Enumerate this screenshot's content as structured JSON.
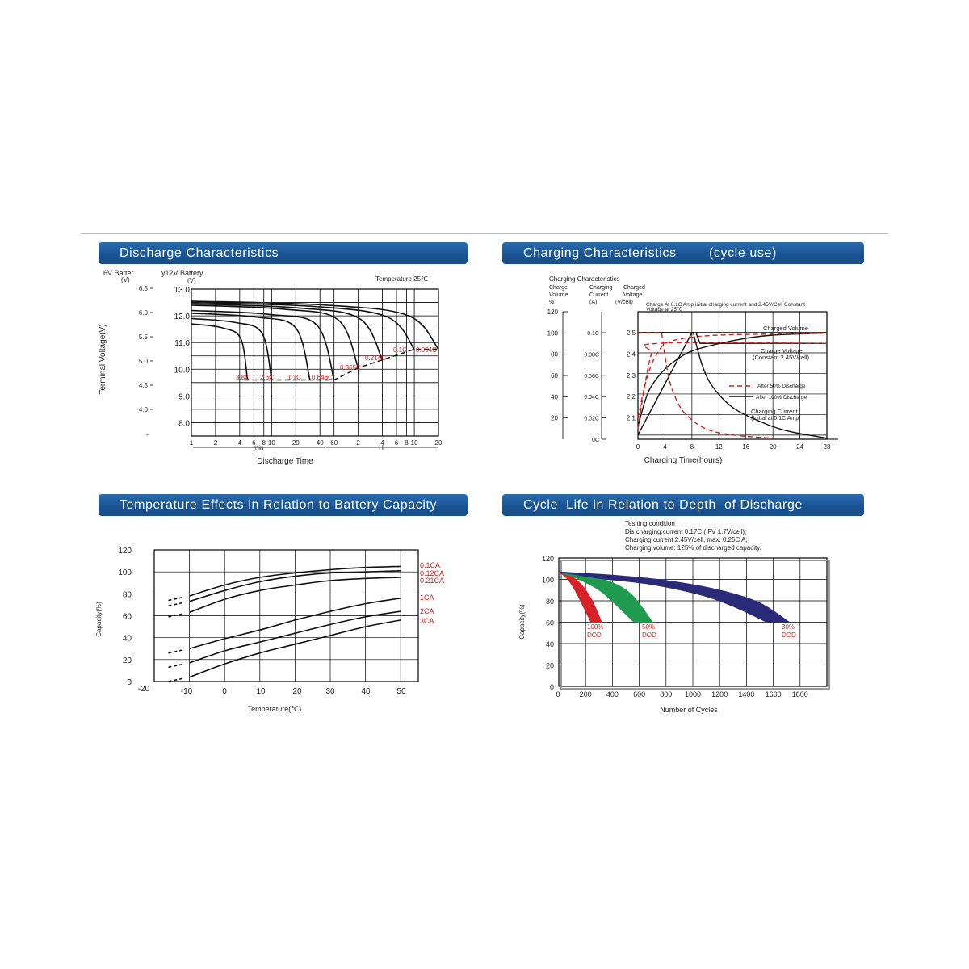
{
  "colors": {
    "header_bg": "#1a5494",
    "grid": "#000000",
    "label_red": "#c8241c",
    "curve": "#111111",
    "dod100": "#d8222a",
    "dod50": "#1f9a4e",
    "dod30": "#2a2a78"
  },
  "headers": {
    "discharge": "Discharge Characteristics",
    "charging": "Charging Characteristics        (cycle use)",
    "temperature": "Temperature Effects in Relation to Battery Capacity",
    "cycle": "Cycle  Life in Relation to Depth  of Discharge"
  },
  "chart_data": [
    {
      "id": "discharge",
      "type": "line",
      "title": "Discharge Characteristics",
      "ylabel": "Terminal Voltage(V)",
      "xlabel": "Discharge Time",
      "axis6_title": "6V Batter",
      "axis6_unit": "(V)",
      "axis12_title": "y12V Battery",
      "axis12_unit": "(V)",
      "note": "Temperature 25℃",
      "y6_ticks": [
        "6.5",
        "6.0",
        "5.5",
        "5.0",
        "4.5",
        "4.0"
      ],
      "y12_ticks": [
        "13.0",
        "12.0",
        "11.0",
        "10.0",
        "9.0",
        "8.0"
      ],
      "ylim": [
        7.5,
        13.0
      ],
      "x_ticks": [
        "1",
        "2",
        "4",
        "6",
        "8",
        "10",
        "20",
        "40",
        "60",
        "2",
        "4",
        "6",
        "8",
        "10",
        "20"
      ],
      "x_units": [
        "min",
        "H"
      ],
      "series": [
        {
          "name": "3.8C",
          "end_time_min": 5,
          "start_v": 11.7,
          "end_v": 9.6
        },
        {
          "name": "2.6C",
          "end_time_min": 10,
          "start_v": 11.9,
          "end_v": 9.6
        },
        {
          "name": "1.1C",
          "end_time_min": 30,
          "start_v": 12.1,
          "end_v": 9.6
        },
        {
          "name": "0.646C",
          "end_time_min": 60,
          "start_v": 12.2,
          "end_v": 9.6
        },
        {
          "name": "0.365C",
          "end_time_min": 120,
          "start_v": 12.4,
          "end_v": 10.05
        },
        {
          "name": "0.214C",
          "end_time_min": 240,
          "start_v": 12.45,
          "end_v": 10.35
        },
        {
          "name": "0.1C",
          "end_time_min": 600,
          "start_v": 12.5,
          "end_v": 10.75
        },
        {
          "name": "0.054C",
          "end_time_min": 1200,
          "start_v": 12.55,
          "end_v": 10.75
        }
      ]
    },
    {
      "id": "charging",
      "type": "line",
      "title": "Charging Characteristics (cycle use)",
      "xlabel": "Charging Time(hours)",
      "col_title": "Charging Characteristics",
      "col1": [
        "Charge",
        "Volume",
        "%"
      ],
      "col2": [
        "Charging",
        "Current",
        "(A)"
      ],
      "col3": [
        "Charged",
        "Voltage",
        "(V/cell)"
      ],
      "note1": "Charge At 0.1C Amp initial charging current and 2.45V/Cell Constant",
      "note2": "Voltage  at 25℃",
      "volume_ticks": [
        "120",
        "100",
        "80",
        "60",
        "40",
        "20"
      ],
      "current_ticks": [
        "0.1C",
        "0.08C",
        "0.06C",
        "0.04C",
        "0.02C",
        "0C"
      ],
      "voltage_ticks": [
        "2.5",
        "2.4",
        "2.3",
        "2.2",
        "2.1"
      ],
      "x": [
        0,
        4,
        8,
        12,
        16,
        20,
        24,
        28
      ],
      "xlim": [
        0,
        28
      ],
      "legend": {
        "dashed": "After 50% Discharge",
        "solid": "After 100% Discharge"
      },
      "labels": {
        "volume": "Charged Volume",
        "voltage1": "Charge Voltage",
        "voltage2": "(Constant 2.45V/cell)",
        "current1": "Charging Current",
        "current2": "(Initial at 0.1C Amp)"
      },
      "series": [
        {
          "name": "Charged Volume (100%)",
          "points": [
            [
              0,
              0.12
            ],
            [
              1,
              0.35
            ],
            [
              2,
              0.5
            ],
            [
              4,
              0.66
            ],
            [
              6,
              0.76
            ],
            [
              8,
              0.83
            ],
            [
              12,
              0.9
            ],
            [
              16,
              0.95
            ],
            [
              20,
              0.98
            ],
            [
              28,
              1.0
            ]
          ]
        },
        {
          "name": "Charged Volume (50%)",
          "points": [
            [
              0,
              0.2
            ],
            [
              1,
              0.5
            ],
            [
              2,
              0.7
            ],
            [
              3,
              0.82
            ],
            [
              4,
              0.9
            ],
            [
              6,
              0.94
            ],
            [
              8,
              0.96
            ],
            [
              12,
              0.98
            ],
            [
              20,
              0.99
            ],
            [
              28,
              1.0
            ]
          ]
        },
        {
          "name": "Charge Voltage (100%)",
          "points": [
            [
              0,
              2.02
            ],
            [
              8,
              2.5
            ],
            [
              8.6,
              2.5
            ],
            [
              9.2,
              2.45
            ],
            [
              28,
              2.45
            ]
          ]
        },
        {
          "name": "Charge Voltage (50%)",
          "points": [
            [
              0,
              2.05
            ],
            [
              1,
              2.25
            ],
            [
              2,
              2.4
            ],
            [
              3,
              2.45
            ],
            [
              28,
              2.45
            ]
          ]
        },
        {
          "name": "Charging Current (100%)",
          "points": [
            [
              0,
              0.1
            ],
            [
              8.2,
              0.1
            ],
            [
              9.5,
              0.07
            ],
            [
              11,
              0.05
            ],
            [
              14,
              0.03
            ],
            [
              18,
              0.017
            ],
            [
              22,
              0.008
            ],
            [
              28,
              0.001
            ]
          ]
        },
        {
          "name": "Charging Current (50%)",
          "points": [
            [
              0,
              0.1
            ],
            [
              3.5,
              0.1
            ],
            [
              4.5,
              0.06
            ],
            [
              5.5,
              0.04
            ],
            [
              7,
              0.024
            ],
            [
              10,
              0.01
            ],
            [
              14,
              0.004
            ],
            [
              20,
              0.001
            ]
          ]
        }
      ]
    },
    {
      "id": "temperature",
      "type": "line",
      "title": "Temperature Effects in Relation to Battery Capacity",
      "xlabel": "Temperature(℃)",
      "ylabel": "Capacity(%)",
      "x_ticks": [
        "-20",
        "-10",
        "0",
        "10",
        "20",
        "30",
        "40",
        "50"
      ],
      "y_ticks": [
        "120",
        "100",
        "80",
        "60",
        "40",
        "20",
        "0"
      ],
      "xlim": [
        -20,
        55
      ],
      "ylim": [
        0,
        120
      ],
      "series": [
        {
          "name": "0.1CA",
          "points": [
            [
              -10,
              78
            ],
            [
              0,
              88
            ],
            [
              10,
              95
            ],
            [
              20,
              99
            ],
            [
              30,
              102
            ],
            [
              40,
              104
            ],
            [
              50,
              105
            ]
          ]
        },
        {
          "name": "0.12CA",
          "points": [
            [
              -10,
              73
            ],
            [
              0,
              83
            ],
            [
              10,
              91
            ],
            [
              20,
              96
            ],
            [
              30,
              99
            ],
            [
              40,
              100
            ],
            [
              50,
              101
            ]
          ]
        },
        {
          "name": "0.21CA",
          "points": [
            [
              -10,
              63
            ],
            [
              0,
              75
            ],
            [
              10,
              83
            ],
            [
              20,
              88
            ],
            [
              30,
              92
            ],
            [
              40,
              94
            ],
            [
              50,
              95
            ]
          ]
        },
        {
          "name": "1CA",
          "points": [
            [
              -10,
              30
            ],
            [
              0,
              39
            ],
            [
              10,
              47
            ],
            [
              20,
              56
            ],
            [
              30,
              64
            ],
            [
              40,
              71
            ],
            [
              50,
              76
            ]
          ]
        },
        {
          "name": "2CA",
          "points": [
            [
              -10,
              17
            ],
            [
              0,
              28
            ],
            [
              10,
              36
            ],
            [
              20,
              44
            ],
            [
              30,
              52
            ],
            [
              40,
              59
            ],
            [
              50,
              64
            ]
          ]
        },
        {
          "name": "3CA",
          "points": [
            [
              -10,
              4
            ],
            [
              0,
              16
            ],
            [
              10,
              26
            ],
            [
              20,
              34
            ],
            [
              30,
              42
            ],
            [
              40,
              50
            ],
            [
              50,
              56
            ]
          ]
        }
      ]
    },
    {
      "id": "cycle",
      "type": "area",
      "title": "Cycle Life in Relation to Depth of Discharge",
      "xlabel": "Number of Cycles",
      "ylabel": "Capacity(%)",
      "test_title": "Tes ting condition",
      "test_lines": [
        "Dis charging:current 0.17C ( FV  1.7V/cell);",
        "Charging:current 2.45V/cell, max. 0.25C A;",
        "Charging volume: 125% of discharged capacity."
      ],
      "x_ticks": [
        "0",
        "200",
        "400",
        "600",
        "800",
        "1000",
        "1200",
        "1400",
        "1600",
        "1800"
      ],
      "y_ticks": [
        "120",
        "100",
        "80",
        "60",
        "40",
        "20",
        "0"
      ],
      "xlim": [
        0,
        2000
      ],
      "ylim": [
        0,
        120
      ],
      "series": [
        {
          "name": "100% DOD",
          "label1": "100%",
          "label2": "DOD",
          "upper": [
            [
              0,
              107
            ],
            [
              80,
              104
            ],
            [
              170,
              95
            ],
            [
              250,
              80
            ],
            [
              320,
              60
            ]
          ],
          "lower": [
            [
              0,
              107
            ],
            [
              60,
              101
            ],
            [
              120,
              90
            ],
            [
              180,
              75
            ],
            [
              240,
              60
            ]
          ]
        },
        {
          "name": "50% DOD",
          "label1": "50%",
          "label2": "DOD",
          "upper": [
            [
              0,
              107
            ],
            [
              200,
              104
            ],
            [
              400,
              97
            ],
            [
              550,
              85
            ],
            [
              700,
              60
            ]
          ],
          "lower": [
            [
              0,
              107
            ],
            [
              150,
              100
            ],
            [
              300,
              90
            ],
            [
              420,
              77
            ],
            [
              560,
              60
            ]
          ]
        },
        {
          "name": "30% DOD",
          "label1": "30%",
          "label2": "DOD",
          "upper": [
            [
              0,
              107
            ],
            [
              400,
              104
            ],
            [
              800,
              99
            ],
            [
              1200,
              90
            ],
            [
              1500,
              78
            ],
            [
              1720,
              60
            ]
          ],
          "lower": [
            [
              0,
              107
            ],
            [
              300,
              101
            ],
            [
              700,
              95
            ],
            [
              1100,
              84
            ],
            [
              1350,
              72
            ],
            [
              1550,
              60
            ]
          ]
        }
      ]
    }
  ]
}
